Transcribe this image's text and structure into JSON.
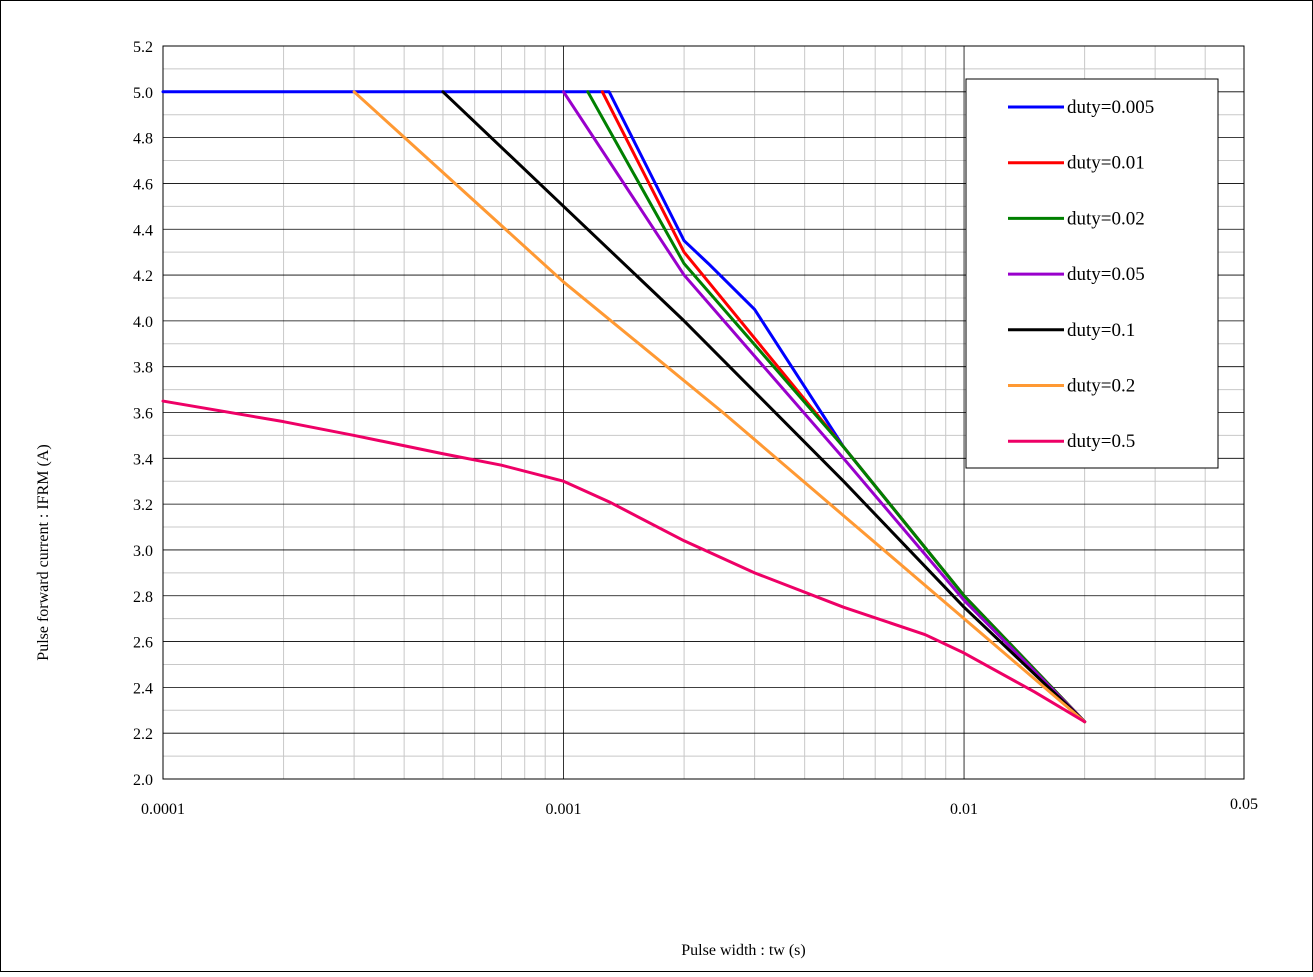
{
  "chart_data": {
    "type": "line",
    "title": "",
    "xlabel": "Pulse width : tw (s)",
    "ylabel": "Pulse forward current : IFRM (A)",
    "xscale": "log",
    "xlim": [
      0.0001,
      0.05
    ],
    "ylim": [
      2.0,
      5.2
    ],
    "x_ticks": [
      "0.0001",
      "0.001",
      "0.01",
      "0.05"
    ],
    "y_ticks": [
      "2.0",
      "2.2",
      "2.4",
      "2.6",
      "2.8",
      "3.0",
      "3.2",
      "3.4",
      "3.6",
      "3.8",
      "4.0",
      "4.2",
      "4.4",
      "4.6",
      "4.8",
      "5.0",
      "5.2"
    ],
    "grid": true,
    "legend_position": "top-right",
    "series": [
      {
        "name": "duty=0.005",
        "color": "#0000ff",
        "x": [
          0.0001,
          0.0013,
          0.002,
          0.0023,
          0.003,
          0.005,
          0.01,
          0.02
        ],
        "y": [
          5.0,
          5.0,
          4.35,
          4.25,
          4.05,
          3.45,
          2.8,
          2.25
        ]
      },
      {
        "name": "duty=0.01",
        "color": "#ff0000",
        "x": [
          0.00125,
          0.002,
          0.005,
          0.01,
          0.02
        ],
        "y": [
          5.0,
          4.3,
          3.45,
          2.8,
          2.25
        ]
      },
      {
        "name": "duty=0.02",
        "color": "#008000",
        "x": [
          0.00115,
          0.002,
          0.005,
          0.01,
          0.02
        ],
        "y": [
          5.0,
          4.25,
          3.45,
          2.8,
          2.25
        ]
      },
      {
        "name": "duty=0.05",
        "color": "#9900cc",
        "x": [
          0.001,
          0.002,
          0.005,
          0.01,
          0.02
        ],
        "y": [
          5.0,
          4.2,
          3.4,
          2.78,
          2.25
        ]
      },
      {
        "name": "duty=0.1",
        "color": "#000000",
        "x": [
          0.0005,
          0.001,
          0.002,
          0.005,
          0.01,
          0.02
        ],
        "y": [
          5.0,
          4.5,
          4.0,
          3.3,
          2.75,
          2.25
        ]
      },
      {
        "name": "duty=0.2",
        "color": "#ff9933",
        "x": [
          0.0003,
          0.001,
          0.0025,
          0.005,
          0.01,
          0.02
        ],
        "y": [
          5.0,
          4.17,
          3.6,
          3.15,
          2.7,
          2.25
        ]
      },
      {
        "name": "duty=0.5",
        "color": "#ee0066",
        "x": [
          0.0001,
          0.0002,
          0.0003,
          0.0005,
          0.0007,
          0.001,
          0.0013,
          0.002,
          0.003,
          0.005,
          0.008,
          0.01,
          0.015,
          0.02
        ],
        "y": [
          3.65,
          3.56,
          3.5,
          3.42,
          3.37,
          3.3,
          3.21,
          3.04,
          2.9,
          2.75,
          2.63,
          2.55,
          2.38,
          2.25
        ]
      }
    ]
  }
}
